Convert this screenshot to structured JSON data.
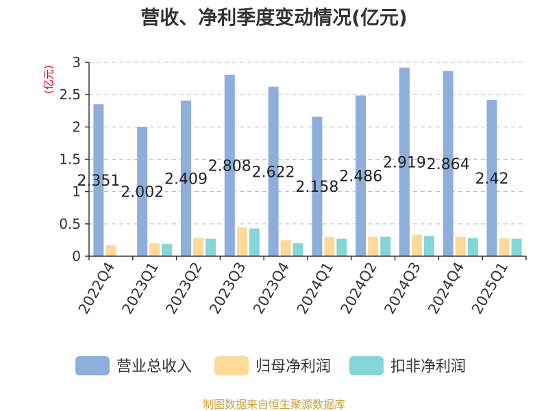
{
  "chart_data": {
    "type": "bar",
    "title": "营收、净利季度变动情况(亿元)",
    "unit_label": "(亿元)",
    "categories": [
      "2022Q4",
      "2023Q1",
      "2023Q2",
      "2023Q3",
      "2023Q4",
      "2024Q1",
      "2024Q2",
      "2024Q3",
      "2024Q4",
      "2025Q1"
    ],
    "series": [
      {
        "name": "营业总收入",
        "color": "#8eaedb",
        "values": [
          2.351,
          2.002,
          2.409,
          2.808,
          2.622,
          2.158,
          2.486,
          2.919,
          2.864,
          2.42
        ],
        "labels": [
          "2.351",
          "2.002",
          "2.409",
          "2.808",
          "2.622",
          "2.158",
          "2.486",
          "2.919",
          "2.864",
          "2.42"
        ]
      },
      {
        "name": "归母净利润",
        "color": "#fdd99a",
        "values": [
          0.17,
          0.2,
          0.28,
          0.45,
          0.25,
          0.3,
          0.3,
          0.33,
          0.3,
          0.28
        ]
      },
      {
        "name": "扣非净利润",
        "color": "#84d6d8",
        "values": [
          null,
          0.19,
          0.27,
          0.43,
          0.2,
          0.27,
          0.3,
          0.31,
          0.28,
          0.27
        ]
      }
    ],
    "ylim": [
      0,
      3
    ],
    "yticks": [
      "0",
      "0.5",
      "1",
      "1.5",
      "2",
      "2.5",
      "3"
    ],
    "ytick_values": [
      0,
      0.5,
      1,
      1.5,
      2,
      2.5,
      3
    ],
    "grid": true,
    "legend_position": "bottom"
  },
  "source": "制图数据来自恒生聚源数据库"
}
